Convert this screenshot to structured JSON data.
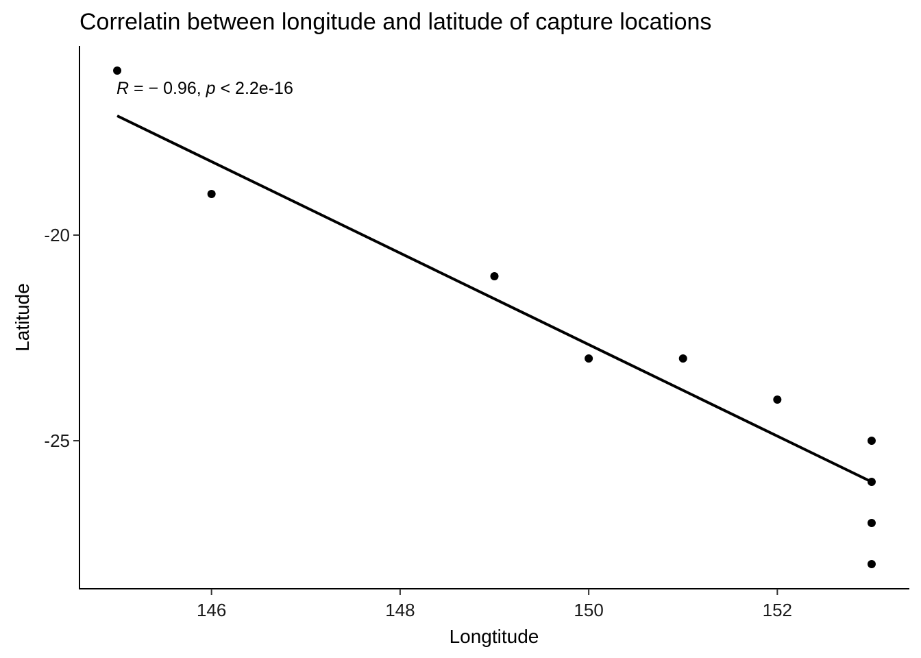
{
  "chart_data": {
    "type": "scatter",
    "title": "Correlatin between longitude and latitude of capture locations",
    "xlabel": "Longtitude",
    "ylabel": "Latitude",
    "xlim": [
      144.6,
      153.4
    ],
    "ylim": [
      -28.6,
      -15.4
    ],
    "xticks": [
      146,
      148,
      150,
      152
    ],
    "yticks": [
      -20,
      -25
    ],
    "xtick_labels": [
      "146",
      "148",
      "150",
      "152"
    ],
    "ytick_labels": [
      "-20",
      "-25"
    ],
    "grid": false,
    "points": [
      {
        "x": 145,
        "y": -16
      },
      {
        "x": 146,
        "y": -19
      },
      {
        "x": 149,
        "y": -21
      },
      {
        "x": 150,
        "y": -23
      },
      {
        "x": 151,
        "y": -23
      },
      {
        "x": 152,
        "y": -24
      },
      {
        "x": 153,
        "y": -25
      },
      {
        "x": 153,
        "y": -26
      },
      {
        "x": 153,
        "y": -27
      },
      {
        "x": 153,
        "y": -28
      }
    ],
    "regression_line": {
      "x": [
        145,
        153
      ],
      "y": [
        -17.1,
        -26.0
      ]
    },
    "annotation": {
      "r_symbol": "R",
      "r_text": " = − 0.96, ",
      "p_symbol": "p",
      "p_text": " < 2.2e-16"
    }
  }
}
